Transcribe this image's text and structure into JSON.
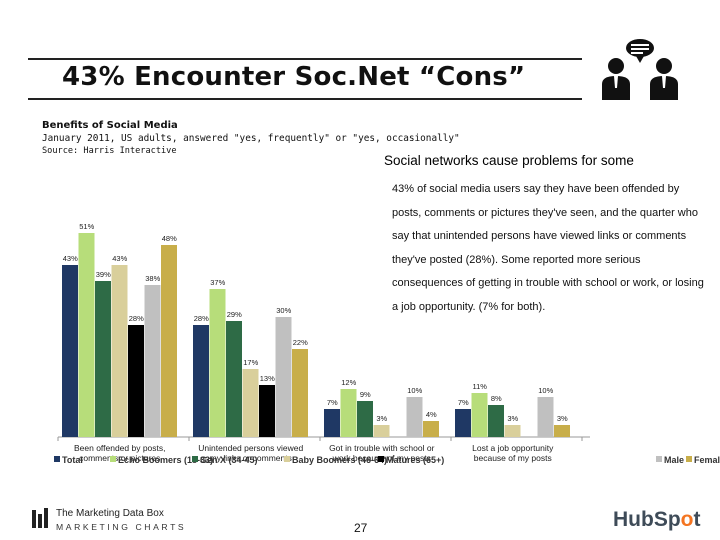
{
  "slide": {
    "title": "43% Encounter Soc.Net “Cons”",
    "benefits_label": "Benefits of Social Media",
    "subtitle_line": "January 2011, US adults, answered \"yes, frequently\" or \"yes, occasionally\"",
    "source": "Source: Harris Interactive",
    "side_heading": "Social networks cause problems for some",
    "side_paragraph": "43% of social media users say they have been offended by posts, comments or pictures they've seen, and the quarter who say that unintended persons have viewed links or comments they've posted (28%). Some reported more serious consequences of getting in trouble with school or work, or losing a job opportunity. (7% for both).",
    "footer_brand_line1": "The Marketing Data Box",
    "footer_brand_line2": "MARKETING CHARTS",
    "page_number": "27",
    "hubspot_logo": "HubSpot"
  },
  "chart_data": {
    "type": "bar",
    "categories": [
      [
        "Been offended by posts,",
        "comments or pictures"
      ],
      [
        "Unintended persons viewed",
        "my links or comments"
      ],
      [
        "Got in trouble with school or",
        "work because of my posts"
      ],
      [
        "Lost a job opportunity",
        "because of my posts"
      ]
    ],
    "ylim": [
      0,
      55
    ],
    "legend": [
      "Total",
      "Echo Boomers (18-33)",
      "Gen X (34-45)",
      "Baby Boomers (46-64)",
      "Matures (65+)",
      "Male",
      "Female"
    ],
    "colors": [
      "#1f3864",
      "#b7dd7a",
      "#2e6b46",
      "#d9cf9b",
      "#000000",
      "#c0c0c0",
      "#c8ae4a"
    ],
    "series": [
      {
        "name": "Total",
        "values": [
          43,
          28,
          7,
          7
        ]
      },
      {
        "name": "Echo Boomers (18-33)",
        "values": [
          51,
          37,
          12,
          11
        ]
      },
      {
        "name": "Gen X (34-45)",
        "values": [
          39,
          29,
          9,
          8
        ]
      },
      {
        "name": "Baby Boomers (46-64)",
        "values": [
          43,
          17,
          3,
          3
        ]
      },
      {
        "name": "Matures (65+)",
        "values": [
          28,
          13,
          null,
          null
        ]
      },
      {
        "name": "Male",
        "values": [
          38,
          30,
          10,
          10
        ]
      },
      {
        "name": "Female",
        "values": [
          48,
          22,
          4,
          3
        ]
      }
    ]
  },
  "icons": {
    "people_icon": "people-speech-icon",
    "marketing_charts_icon": "bars-logo-icon"
  }
}
